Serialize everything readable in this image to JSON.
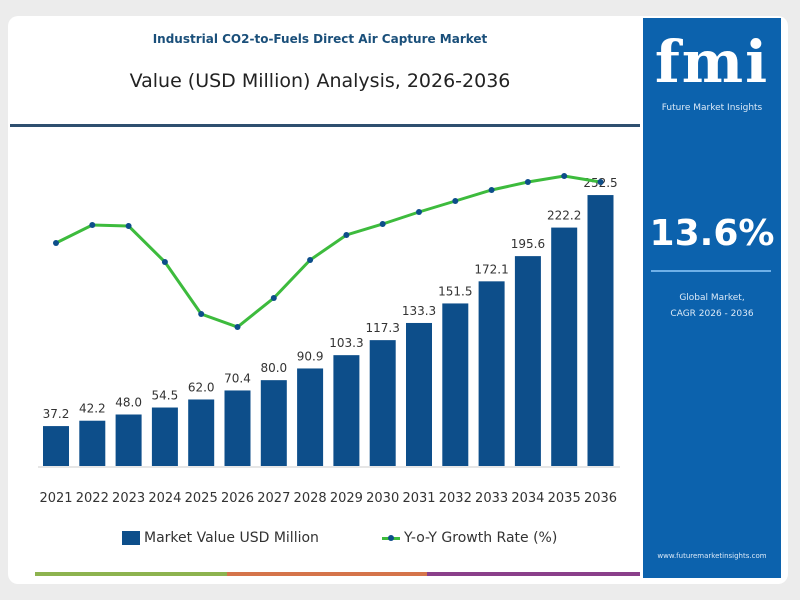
{
  "header": {
    "subtitle": "Industrial CO2-to-Fuels Direct Air Capture Market",
    "title": "Value (USD Million) Analysis, 2026-2036"
  },
  "sidebar": {
    "logo": "fmi",
    "company": "Future Market Insights",
    "cagr": "13.6%",
    "cagr_label_1": "Global Market,",
    "cagr_label_2": "CAGR 2026 - 2036",
    "url": "www.futuremarketinsights.com"
  },
  "colors": {
    "bar": "#0d4e8a",
    "line": "#3dbb3d",
    "panel": "#0c62ad"
  },
  "chart_data": {
    "type": "bar+line",
    "categories": [
      "2021",
      "2022",
      "2023",
      "2024",
      "2025",
      "2026",
      "2027",
      "2028",
      "2029",
      "2030",
      "2031",
      "2032",
      "2033",
      "2034",
      "2035",
      "2036"
    ],
    "series": [
      {
        "name": "Market Value USD Million",
        "type": "bar",
        "values": [
          37.2,
          42.2,
          48.0,
          54.5,
          62.0,
          70.4,
          80.0,
          90.9,
          103.3,
          117.3,
          133.3,
          151.5,
          172.1,
          195.6,
          222.2,
          252.5
        ],
        "labels": [
          "37.2",
          "42.2",
          "48.0",
          "54.5",
          "62.0",
          "70.4",
          "80.0",
          "90.9",
          "103.3",
          "117.3",
          "133.3",
          "151.5",
          "172.1",
          "195.6",
          "222.2",
          "252.5"
        ]
      },
      {
        "name": "Y-o-Y Growth Rate (%)",
        "type": "line",
        "values": [
          9.7,
          11.5,
          11.4,
          7.8,
          2.6,
          1.3,
          4.2,
          8.0,
          10.5,
          11.6,
          12.8,
          13.9,
          15.0,
          15.8,
          16.4,
          15.8
        ]
      }
    ],
    "grid": false,
    "legend": "bottom"
  }
}
